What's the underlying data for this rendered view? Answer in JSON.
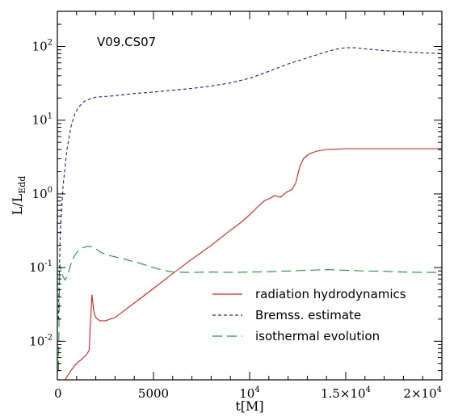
{
  "chart_data": {
    "type": "line",
    "title": "V09.CS07",
    "xlabel": "t[M]",
    "ylabel_main": "L/L",
    "ylabel_sub": "Edd",
    "xlim": [
      0,
      20000
    ],
    "ylim": [
      0.003,
      300
    ],
    "yscale": "log",
    "x_ticks": [
      {
        "value": 0,
        "label": "0"
      },
      {
        "value": 5000,
        "label": "5000"
      },
      {
        "value": 10000,
        "label": "10",
        "exp": "4"
      },
      {
        "value": 15000,
        "label": "1.5×10",
        "exp": "4"
      },
      {
        "value": 20000,
        "label": "2×10",
        "exp": "4"
      }
    ],
    "y_ticks": [
      {
        "value": 0.01,
        "label": "10",
        "exp": "-2"
      },
      {
        "value": 0.1,
        "label": "10",
        "exp": "-1"
      },
      {
        "value": 1,
        "label": "10",
        "exp": "0"
      },
      {
        "value": 10,
        "label": "10",
        "exp": "1"
      },
      {
        "value": 100,
        "label": "10",
        "exp": "2"
      }
    ],
    "legend_position": "bottom-right",
    "series": [
      {
        "name": "radiation hydrodynamics",
        "color": "#e0201c",
        "dash": "solid",
        "x": [
          400,
          700,
          1000,
          1300,
          1500,
          1650,
          1800,
          1900,
          2000,
          2200,
          2500,
          3000,
          4000,
          5000,
          6000,
          7000,
          8000,
          9000,
          9500,
          10000,
          10400,
          10800,
          11100,
          11300,
          11600,
          11900,
          12200,
          12400,
          12600,
          12800,
          13100,
          13500,
          14000,
          15000,
          16000,
          17000,
          18000,
          19000,
          20000
        ],
        "y": [
          0.003,
          0.004,
          0.005,
          0.0058,
          0.0065,
          0.0075,
          0.043,
          0.025,
          0.021,
          0.019,
          0.019,
          0.021,
          0.033,
          0.052,
          0.083,
          0.13,
          0.2,
          0.32,
          0.4,
          0.52,
          0.66,
          0.82,
          0.88,
          0.95,
          0.9,
          1.05,
          1.15,
          1.4,
          2.3,
          3.0,
          3.5,
          3.8,
          4.0,
          4.1,
          4.1,
          4.1,
          4.1,
          4.1,
          4.1
        ]
      },
      {
        "name": "Bremss. estimate",
        "color": "#1f1fb4",
        "dash": "short",
        "x": [
          50,
          150,
          300,
          500,
          700,
          900,
          1100,
          1400,
          1700,
          2000,
          3000,
          4000,
          5000,
          6000,
          7000,
          8000,
          9000,
          10000,
          11000,
          12000,
          13000,
          14000,
          14500,
          15000,
          15500,
          16000,
          17000,
          18000,
          19000,
          20000
        ],
        "y": [
          0.02,
          0.3,
          1.3,
          4.0,
          8.0,
          12,
          15,
          18,
          19.5,
          20.5,
          21.5,
          23,
          24,
          25.5,
          27,
          29,
          32,
          37,
          46,
          58,
          70,
          85,
          92,
          96,
          96,
          93,
          88,
          85,
          82,
          80
        ]
      },
      {
        "name": "isothermal evolution",
        "color": "#1a9a3a",
        "dash": "long",
        "x": [
          60,
          120,
          200,
          300,
          400,
          500,
          650,
          800,
          1000,
          1300,
          1600,
          1800,
          2000,
          2200,
          2500,
          3000,
          3500,
          4000,
          4500,
          5000,
          5500,
          6000,
          7000,
          8000,
          9000,
          10000,
          11000,
          12000,
          13000,
          14000,
          15000,
          16000,
          17000,
          18000,
          19000,
          20000
        ],
        "y": [
          0.004,
          0.11,
          0.09,
          0.075,
          0.068,
          0.075,
          0.1,
          0.13,
          0.16,
          0.185,
          0.195,
          0.19,
          0.18,
          0.165,
          0.15,
          0.14,
          0.13,
          0.12,
          0.11,
          0.1,
          0.092,
          0.087,
          0.086,
          0.087,
          0.086,
          0.087,
          0.088,
          0.09,
          0.092,
          0.094,
          0.092,
          0.09,
          0.089,
          0.087,
          0.086,
          0.086
        ]
      }
    ]
  }
}
